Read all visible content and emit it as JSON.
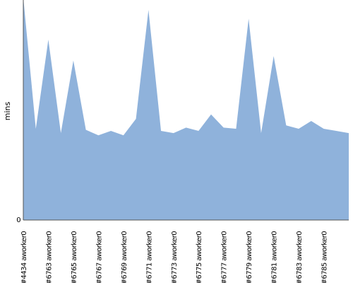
{
  "chart_data": {
    "type": "area",
    "title": "",
    "xlabel": "",
    "ylabel": "mins",
    "ylim": [
      0,
      100
    ],
    "yticks": [
      "0"
    ],
    "grid": false,
    "legend": "none",
    "fill_color": "#8fb2db",
    "axis_color": "#555555",
    "x": [
      "#4434 aworker0",
      "#4434 aworker0",
      "#4434 aworker0",
      "#4434 aworker0",
      "#4434 aworker0",
      "#4434 aworker0",
      "#4434 aworker0",
      "#4434 aworker0",
      "#4434 aworker0",
      "#4434 aworker0",
      "#4434 aworker0",
      "#4434 aworker0",
      "#4434 aworker0",
      "#4434 aworker0",
      "#4434 aworker0",
      "#4434 aworker0",
      "#4434 aworker0",
      "#4434 aworker0",
      "#4434 aworker0",
      "#4434 aworker0",
      "#4434 aworker0",
      "#4434 aworker0",
      "#4434 aworker0",
      "#4434 aworker0",
      "#4434 aworker0",
      "#4434 aworker0",
      "#4434 aworker0"
    ],
    "tick_labels": [
      "#4434 aworker0",
      "#6763 aworker0",
      "#6765 aworker0",
      "#6767 aworker0",
      "#6769 aworker0",
      "#6771 aworker0",
      "#6773 aworker0",
      "#6775 aworker0",
      "#6777 aworker0",
      "#6779 aworker0",
      "#6781 aworker0",
      "#6783 aworker0",
      "#6785 aworker0"
    ],
    "values": [
      101,
      41.5,
      82,
      39.5,
      72.5,
      41,
      38.5,
      40.5,
      38.5,
      46,
      95.5,
      40.5,
      39.5,
      42,
      40.5,
      48,
      42,
      41.5,
      91.5,
      39.5,
      74.5,
      43,
      41.5,
      45,
      41.5,
      40.5,
      39.5
    ]
  }
}
